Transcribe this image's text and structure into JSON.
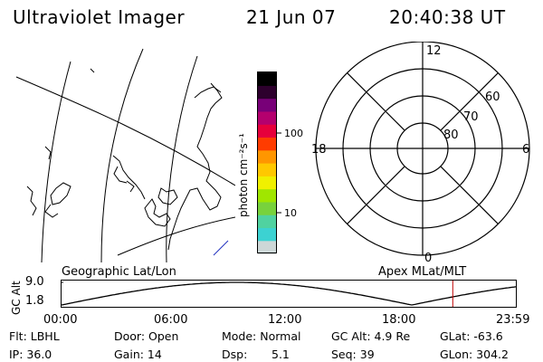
{
  "header": {
    "instrument": "Ultraviolet Imager",
    "date": "21 Jun 07",
    "time": "20:40:38 UT"
  },
  "colorbar": {
    "label": "photon cm⁻²s⁻¹",
    "tick_100": "100",
    "tick_10": "10",
    "colors": [
      "#cdd7d7",
      "#3cd2d2",
      "#50d2a0",
      "#78d23c",
      "#a0e600",
      "#f0f000",
      "#ffc800",
      "#ff9600",
      "#ff3c00",
      "#e6003c",
      "#b4006e",
      "#780078",
      "#2d002d",
      "#000000"
    ]
  },
  "polar_plot": {
    "mlt_labels": {
      "top": "12",
      "left": "18",
      "right": "6",
      "bottom": "0"
    },
    "lat_labels": [
      "60",
      "70",
      "80"
    ]
  },
  "timeline": {
    "left_label": "Geographic Lat/Lon",
    "right_label": "Apex MLat/MLT",
    "axis_title": "GC Alt",
    "y_max": "9.0",
    "y_min": "1.8",
    "x_ticks": [
      "00:00",
      "06:00",
      "12:00",
      "18:00",
      "23:59"
    ],
    "marker_time": "20:40",
    "marker_color": "#c00000"
  },
  "status": {
    "flt": "Flt: LBHL",
    "door": "Door: Open",
    "mode": "Mode: Normal",
    "gc_alt": "GC Alt: 4.9 Re",
    "glat": "GLat: -63.6",
    "ip": "IP: 36.0",
    "gain": "Gain: 14",
    "dsp_label": "Dsp:",
    "dsp_value": "5.1",
    "seq": "Seq: 39",
    "glon": "GLon: 304.2"
  }
}
